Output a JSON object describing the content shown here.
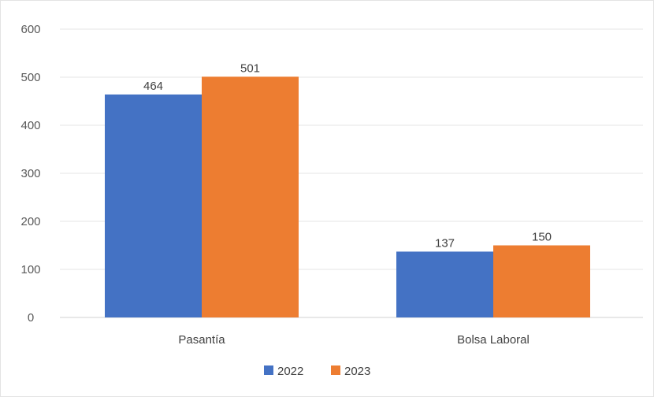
{
  "chart_data": {
    "type": "bar",
    "categories": [
      "Pasantía",
      "Bolsa Laboral"
    ],
    "series": [
      {
        "name": "2022",
        "values": [
          464,
          137
        ],
        "color": "#4472C4"
      },
      {
        "name": "2023",
        "values": [
          501,
          150
        ],
        "color": "#ED7D31"
      }
    ],
    "ylim": [
      0,
      600
    ],
    "yticks": [
      0,
      100,
      200,
      300,
      400,
      500,
      600
    ],
    "grid": true,
    "legend": "bottom",
    "data_labels": true
  }
}
